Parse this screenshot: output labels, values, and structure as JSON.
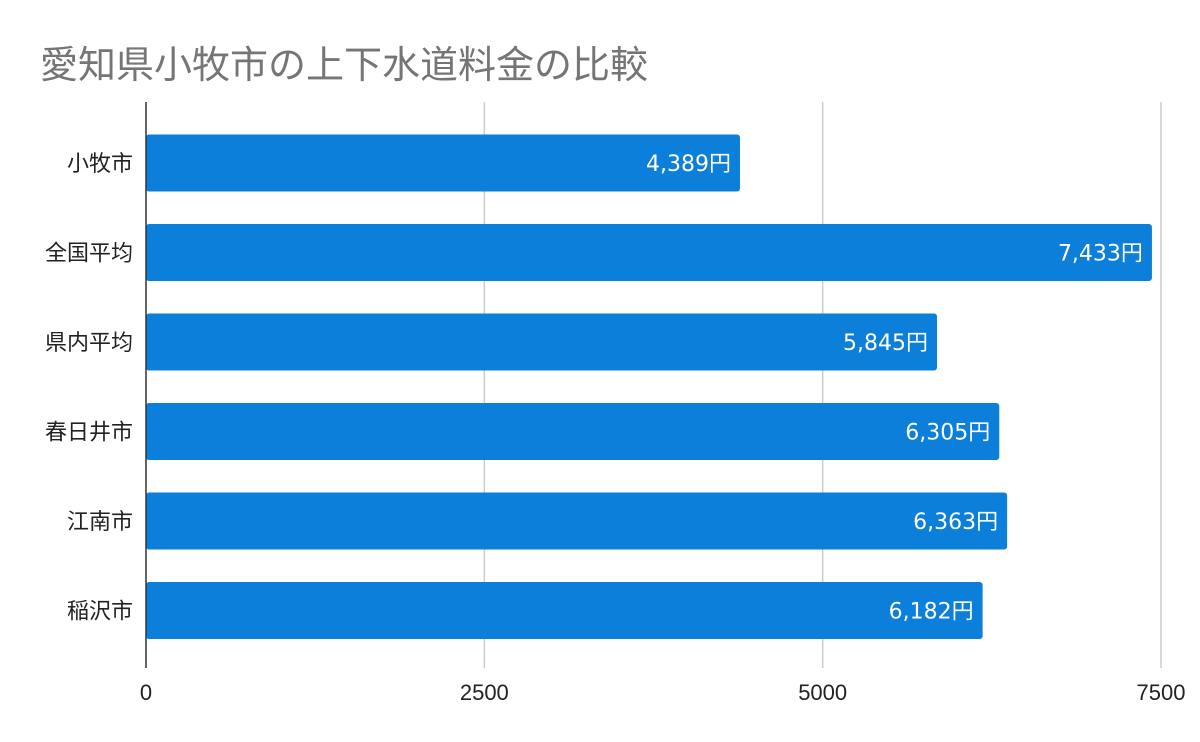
{
  "chart_data": {
    "type": "bar",
    "orientation": "horizontal",
    "title": "愛知県小牧市の上下水道料金の比較",
    "categories": [
      "小牧市",
      "全国平均",
      "県内平均",
      "春日井市",
      "江南市",
      "稲沢市"
    ],
    "values": [
      4389,
      7433,
      5845,
      6305,
      6363,
      6182
    ],
    "data_labels": [
      "4,389円",
      "7,433円",
      "5,845円",
      "6,305円",
      "6,363円",
      "6,182円"
    ],
    "xlim": [
      0,
      7500
    ],
    "x_ticks": [
      "0",
      "2500",
      "5000",
      "7500"
    ],
    "grid": true,
    "bar_color": "#0b7fd9",
    "legend": "none"
  }
}
